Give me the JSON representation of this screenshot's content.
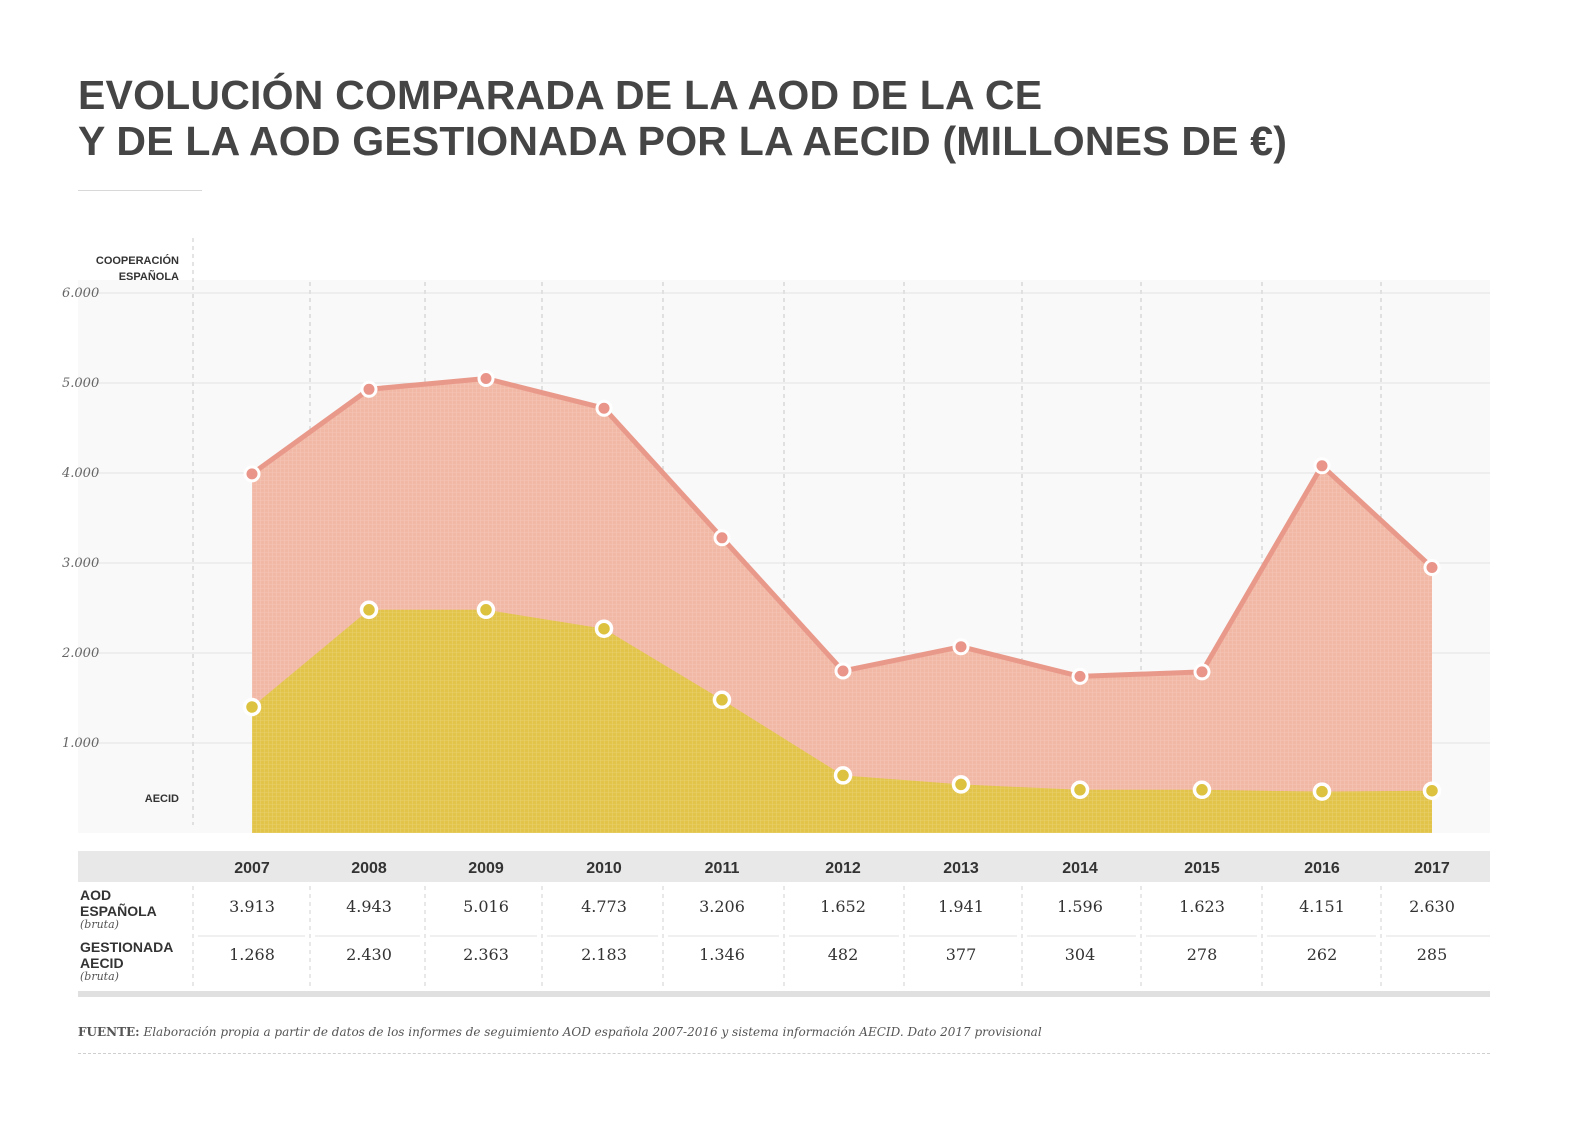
{
  "title": {
    "line1": "EVOLUCIÓN COMPARADA DE LA AOD DE LA CE",
    "line2": "Y DE LA AOD GESTIONADA POR LA AECID (MILLONES DE €)"
  },
  "colors": {
    "coop_fill": "#f2b8a6",
    "coop_line": "#e9998a",
    "aecid_fill": "#e2c44a",
    "aecid_line": "#d9b840",
    "header_bg": "#e8e8e8",
    "bottom_bar": "#e0e0e0"
  },
  "chart_data": {
    "type": "area",
    "series_labels": {
      "top": "COOPERACIÓN\nESPAÑOLA",
      "bottom": "AECID"
    },
    "ylim": [
      0,
      6500
    ],
    "yticks": [
      1000,
      2000,
      3000,
      4000,
      5000,
      6000
    ],
    "ytick_labels": [
      "1.000",
      "2.000",
      "3.000",
      "4.000",
      "5.000",
      "6.000"
    ],
    "categories": [
      "2007",
      "2008",
      "2009",
      "2010",
      "2011",
      "2012",
      "2013",
      "2014",
      "2015",
      "2016",
      "2017"
    ],
    "series": [
      {
        "name": "COOPERACIÓN ESPAÑOLA",
        "values": [
          3913,
          4943,
          5016,
          4773,
          3206,
          1652,
          1941,
          1596,
          1623,
          4151,
          2630
        ],
        "plotted": [
          3990,
          4930,
          5050,
          4720,
          3280,
          1800,
          2070,
          1740,
          1790,
          4080,
          2950
        ]
      },
      {
        "name": "AECID",
        "values": [
          1268,
          2430,
          2363,
          2183,
          1346,
          482,
          377,
          304,
          278,
          262,
          285
        ],
        "plotted": [
          1400,
          2480,
          2480,
          2270,
          1480,
          640,
          540,
          480,
          480,
          460,
          470
        ]
      }
    ]
  },
  "table": {
    "rows": [
      {
        "label": "AOD\nESPAÑOLA",
        "sublabel": "(bruta)",
        "values": [
          "3.913",
          "4.943",
          "5.016",
          "4.773",
          "3.206",
          "1.652",
          "1.941",
          "1.596",
          "1.623",
          "4.151",
          "2.630"
        ]
      },
      {
        "label": "GESTIONADA\nAECID",
        "sublabel": "(bruta)",
        "values": [
          "1.268",
          "2.430",
          "2.363",
          "2.183",
          "1.346",
          "482",
          "377",
          "304",
          "278",
          "262",
          "285"
        ]
      }
    ]
  },
  "footer": {
    "label": "FUENTE:",
    "text": "Elaboración propia a partir de datos de los informes de seguimiento AOD española 2007-2016 y sistema información AECID. Dato 2017 provisional"
  }
}
